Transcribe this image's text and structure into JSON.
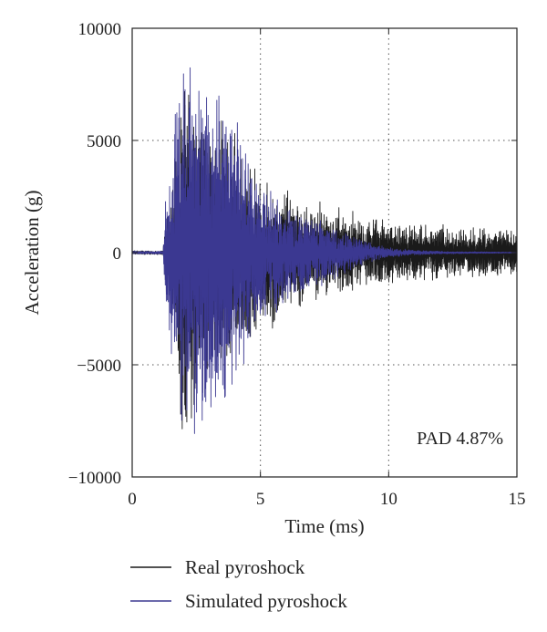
{
  "chart_data": {
    "type": "line",
    "xlabel": "Time (ms)",
    "ylabel": "Acceleration (g)",
    "xlim": [
      0,
      15
    ],
    "ylim": [
      -10000,
      10000
    ],
    "xticks": [
      0,
      5,
      10,
      15
    ],
    "yticks": [
      -10000,
      -5000,
      0,
      5000,
      10000
    ],
    "xtick_labels": [
      "0",
      "5",
      "10",
      "15"
    ],
    "ytick_labels": [
      "−10000",
      "−5000",
      "0",
      "5000",
      "10000"
    ],
    "grid": "dotted",
    "annotation": "PAD 4.87%",
    "legend_position": "below",
    "series": [
      {
        "name": "Real pyroshock",
        "color": "#1a1a1a",
        "envelope": {
          "t": [
            0,
            1.2,
            1.3,
            1.8,
            2.0,
            2.5,
            3.0,
            3.5,
            4.0,
            4.5,
            5.0,
            6.0,
            7.0,
            8.0,
            9.0,
            10.0,
            11.0,
            12.0,
            13.0,
            14.0,
            15.0
          ],
          "amplitude": [
            80,
            80,
            1500,
            4800,
            8000,
            5800,
            5000,
            5500,
            4500,
            3800,
            3200,
            2500,
            2000,
            1700,
            1500,
            1300,
            1200,
            1100,
            1000,
            950,
            900
          ]
        }
      },
      {
        "name": "Simulated pyroshock",
        "color": "#3b3891",
        "envelope": {
          "t": [
            0,
            1.2,
            1.3,
            1.8,
            2.2,
            2.5,
            3.0,
            3.5,
            4.0,
            4.5,
            5.0,
            6.0,
            7.0,
            8.0,
            9.0,
            10.0,
            11.0,
            12.0,
            13.0,
            14.0,
            15.0
          ],
          "amplitude": [
            60,
            60,
            2000,
            7000,
            7800,
            7200,
            6500,
            7000,
            5500,
            4200,
            2800,
            2000,
            1500,
            1000,
            500,
            200,
            100,
            60,
            40,
            30,
            20
          ]
        }
      }
    ]
  }
}
